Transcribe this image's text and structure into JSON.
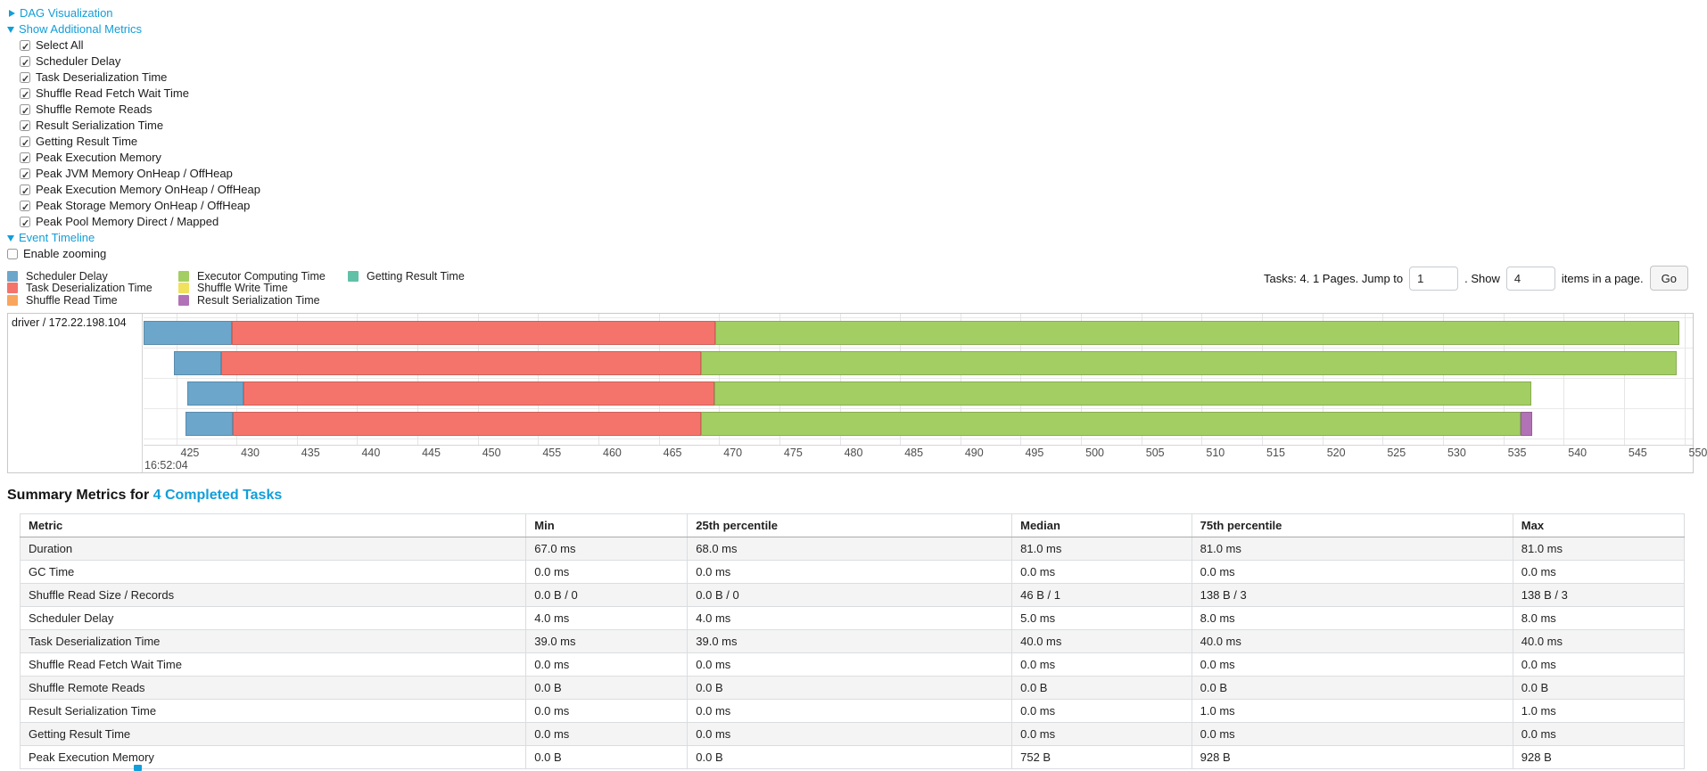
{
  "colors": {
    "link": "#129ed9",
    "scheduler_delay": "#6DA6CB",
    "task_deserialization": "#F4746B",
    "shuffle_read": "#F8A65D",
    "executor_computing": "#A3CE63",
    "shuffle_write": "#F0E25C",
    "result_serialization": "#B173B5",
    "getting_result": "#60C1A7"
  },
  "controls": {
    "dag_label": "DAG Visualization",
    "metrics_label": "Show Additional Metrics",
    "event_timeline_label": "Event Timeline",
    "enable_zooming_label": "Enable zooming"
  },
  "metric_checkboxes": [
    "Select All",
    "Scheduler Delay",
    "Task Deserialization Time",
    "Shuffle Read Fetch Wait Time",
    "Shuffle Remote Reads",
    "Result Serialization Time",
    "Getting Result Time",
    "Peak Execution Memory",
    "Peak JVM Memory OnHeap / OffHeap",
    "Peak Execution Memory OnHeap / OffHeap",
    "Peak Storage Memory OnHeap / OffHeap",
    "Peak Pool Memory Direct / Mapped"
  ],
  "legend_columns": [
    [
      {
        "label": "Scheduler Delay",
        "type": "scheduler_delay"
      },
      {
        "label": "Task Deserialization Time",
        "type": "task_deserialization"
      },
      {
        "label": "Shuffle Read Time",
        "type": "shuffle_read"
      }
    ],
    [
      {
        "label": "Executor Computing Time",
        "type": "executor_computing"
      },
      {
        "label": "Shuffle Write Time",
        "type": "shuffle_write"
      },
      {
        "label": "Result Serialization Time",
        "type": "result_serialization"
      }
    ],
    [
      {
        "label": "Getting Result Time",
        "type": "getting_result"
      }
    ]
  ],
  "pagination": {
    "text_before": "Tasks: 4. 1 Pages. Jump to",
    "jump_value": "1",
    "text_mid": ". Show",
    "show_value": "4",
    "text_after": "items in a page.",
    "go_label": "Go"
  },
  "chart_data": {
    "type": "timeline-gantt",
    "group_label": "driver / 172.22.198.104",
    "axis_start": 422.3,
    "axis_end": 550.7,
    "ticks": {
      "from": 425,
      "to": 550,
      "step": 5
    },
    "major_label": "16:52:04",
    "tasks": [
      {
        "segments": [
          {
            "type": "scheduler_delay",
            "from": 422.3,
            "to": 429.6
          },
          {
            "type": "task_deserialization",
            "from": 429.6,
            "to": 469.7
          },
          {
            "type": "executor_computing",
            "from": 469.7,
            "to": 549.6
          }
        ]
      },
      {
        "segments": [
          {
            "type": "scheduler_delay",
            "from": 424.8,
            "to": 428.7
          },
          {
            "type": "task_deserialization",
            "from": 428.7,
            "to": 468.5
          },
          {
            "type": "executor_computing",
            "from": 468.5,
            "to": 549.4
          }
        ]
      },
      {
        "segments": [
          {
            "type": "scheduler_delay",
            "from": 425.9,
            "to": 430.6
          },
          {
            "type": "task_deserialization",
            "from": 430.6,
            "to": 469.6
          },
          {
            "type": "executor_computing",
            "from": 469.6,
            "to": 537.3
          }
        ]
      },
      {
        "segments": [
          {
            "type": "scheduler_delay",
            "from": 425.8,
            "to": 429.7
          },
          {
            "type": "task_deserialization",
            "from": 429.7,
            "to": 468.5
          },
          {
            "type": "executor_computing",
            "from": 468.5,
            "to": 536.4
          },
          {
            "type": "result_serialization",
            "from": 536.4,
            "to": 537.4
          }
        ]
      }
    ]
  },
  "summary": {
    "title_prefix": "Summary Metrics for ",
    "title_link": "4 Completed Tasks",
    "table": {
      "columns": [
        "Metric",
        "Min",
        "25th percentile",
        "Median",
        "75th percentile",
        "Max"
      ],
      "col_widths": [
        30.4,
        9.7,
        19.5,
        10.8,
        19.3,
        10.3
      ],
      "rows": [
        {
          "metric": "Duration",
          "values": [
            "67.0 ms",
            "68.0 ms",
            "81.0 ms",
            "81.0 ms",
            "81.0 ms"
          ]
        },
        {
          "metric": "GC Time",
          "values": [
            "0.0 ms",
            "0.0 ms",
            "0.0 ms",
            "0.0 ms",
            "0.0 ms"
          ]
        },
        {
          "metric": "Shuffle Read Size / Records",
          "values": [
            "0.0 B / 0",
            "0.0 B / 0",
            "46 B / 1",
            "138 B / 3",
            "138 B / 3"
          ]
        },
        {
          "metric": "Scheduler Delay",
          "values": [
            "4.0 ms",
            "4.0 ms",
            "5.0 ms",
            "8.0 ms",
            "8.0 ms"
          ]
        },
        {
          "metric": "Task Deserialization Time",
          "values": [
            "39.0 ms",
            "39.0 ms",
            "40.0 ms",
            "40.0 ms",
            "40.0 ms"
          ]
        },
        {
          "metric": "Shuffle Read Fetch Wait Time",
          "values": [
            "0.0 ms",
            "0.0 ms",
            "0.0 ms",
            "0.0 ms",
            "0.0 ms"
          ]
        },
        {
          "metric": "Shuffle Remote Reads",
          "values": [
            "0.0 B",
            "0.0 B",
            "0.0 B",
            "0.0 B",
            "0.0 B"
          ]
        },
        {
          "metric": "Result Serialization Time",
          "values": [
            "0.0 ms",
            "0.0 ms",
            "0.0 ms",
            "1.0 ms",
            "1.0 ms"
          ]
        },
        {
          "metric": "Getting Result Time",
          "values": [
            "0.0 ms",
            "0.0 ms",
            "0.0 ms",
            "0.0 ms",
            "0.0 ms"
          ]
        },
        {
          "metric": "Peak Execution Memory",
          "values": [
            "0.0 B",
            "0.0 B",
            "752 B",
            "928 B",
            "928 B"
          ]
        }
      ]
    }
  }
}
